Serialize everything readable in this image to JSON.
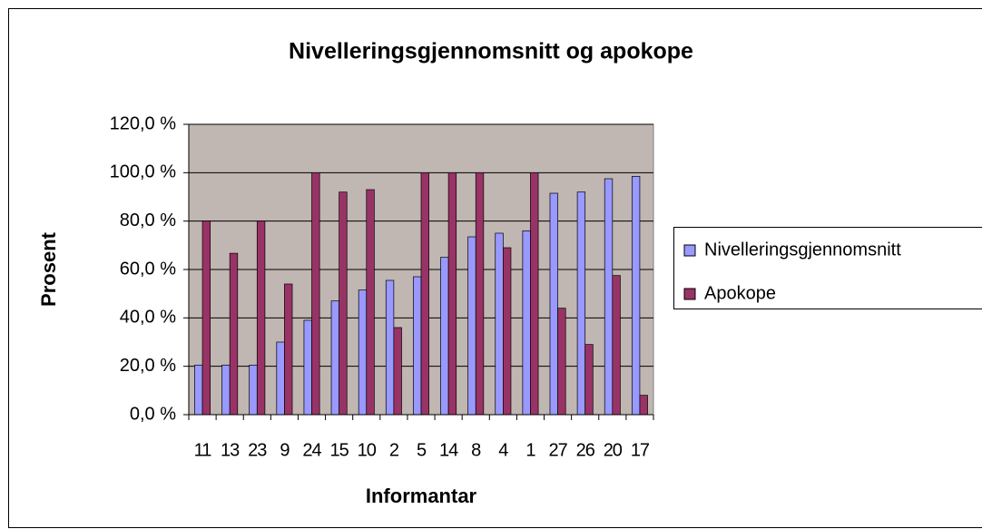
{
  "chart_data": {
    "type": "bar",
    "title": "Nivelleringsgjennomsnitt og apokope",
    "x_label": "Informantar",
    "y_label": "Prosent",
    "categories": [
      "11",
      "13",
      "23",
      "9",
      "24",
      "15",
      "10",
      "2",
      "5",
      "14",
      "8",
      "4",
      "1",
      "27",
      "26",
      "20",
      "17"
    ],
    "series": [
      {
        "name": "Nivelleringsgjennomsnitt",
        "color": "#9999ff",
        "values": [
          20.5,
          20.5,
          20.5,
          30,
          39,
          47,
          51.5,
          55.5,
          57,
          65,
          73.5,
          75,
          76,
          91.5,
          92,
          97.5,
          98.5
        ]
      },
      {
        "name": "Apokope",
        "color": "#993366",
        "values": [
          80,
          66.7,
          80,
          54,
          100,
          92,
          93,
          36,
          100,
          100,
          100,
          69,
          100,
          44,
          29,
          57.5,
          8
        ]
      }
    ],
    "ylim": [
      0,
      120
    ],
    "yticks": [
      {
        "value": 0,
        "label": "0,0 %"
      },
      {
        "value": 20,
        "label": "20,0 %"
      },
      {
        "value": 40,
        "label": "40,0 %"
      },
      {
        "value": 60,
        "label": "60,0 %"
      },
      {
        "value": 80,
        "label": "80,0 %"
      },
      {
        "value": 100,
        "label": "100,0 %"
      },
      {
        "value": 120,
        "label": "120,0 %"
      }
    ],
    "grid": true,
    "plot_background": "#c0b6b2",
    "legend": "right"
  }
}
